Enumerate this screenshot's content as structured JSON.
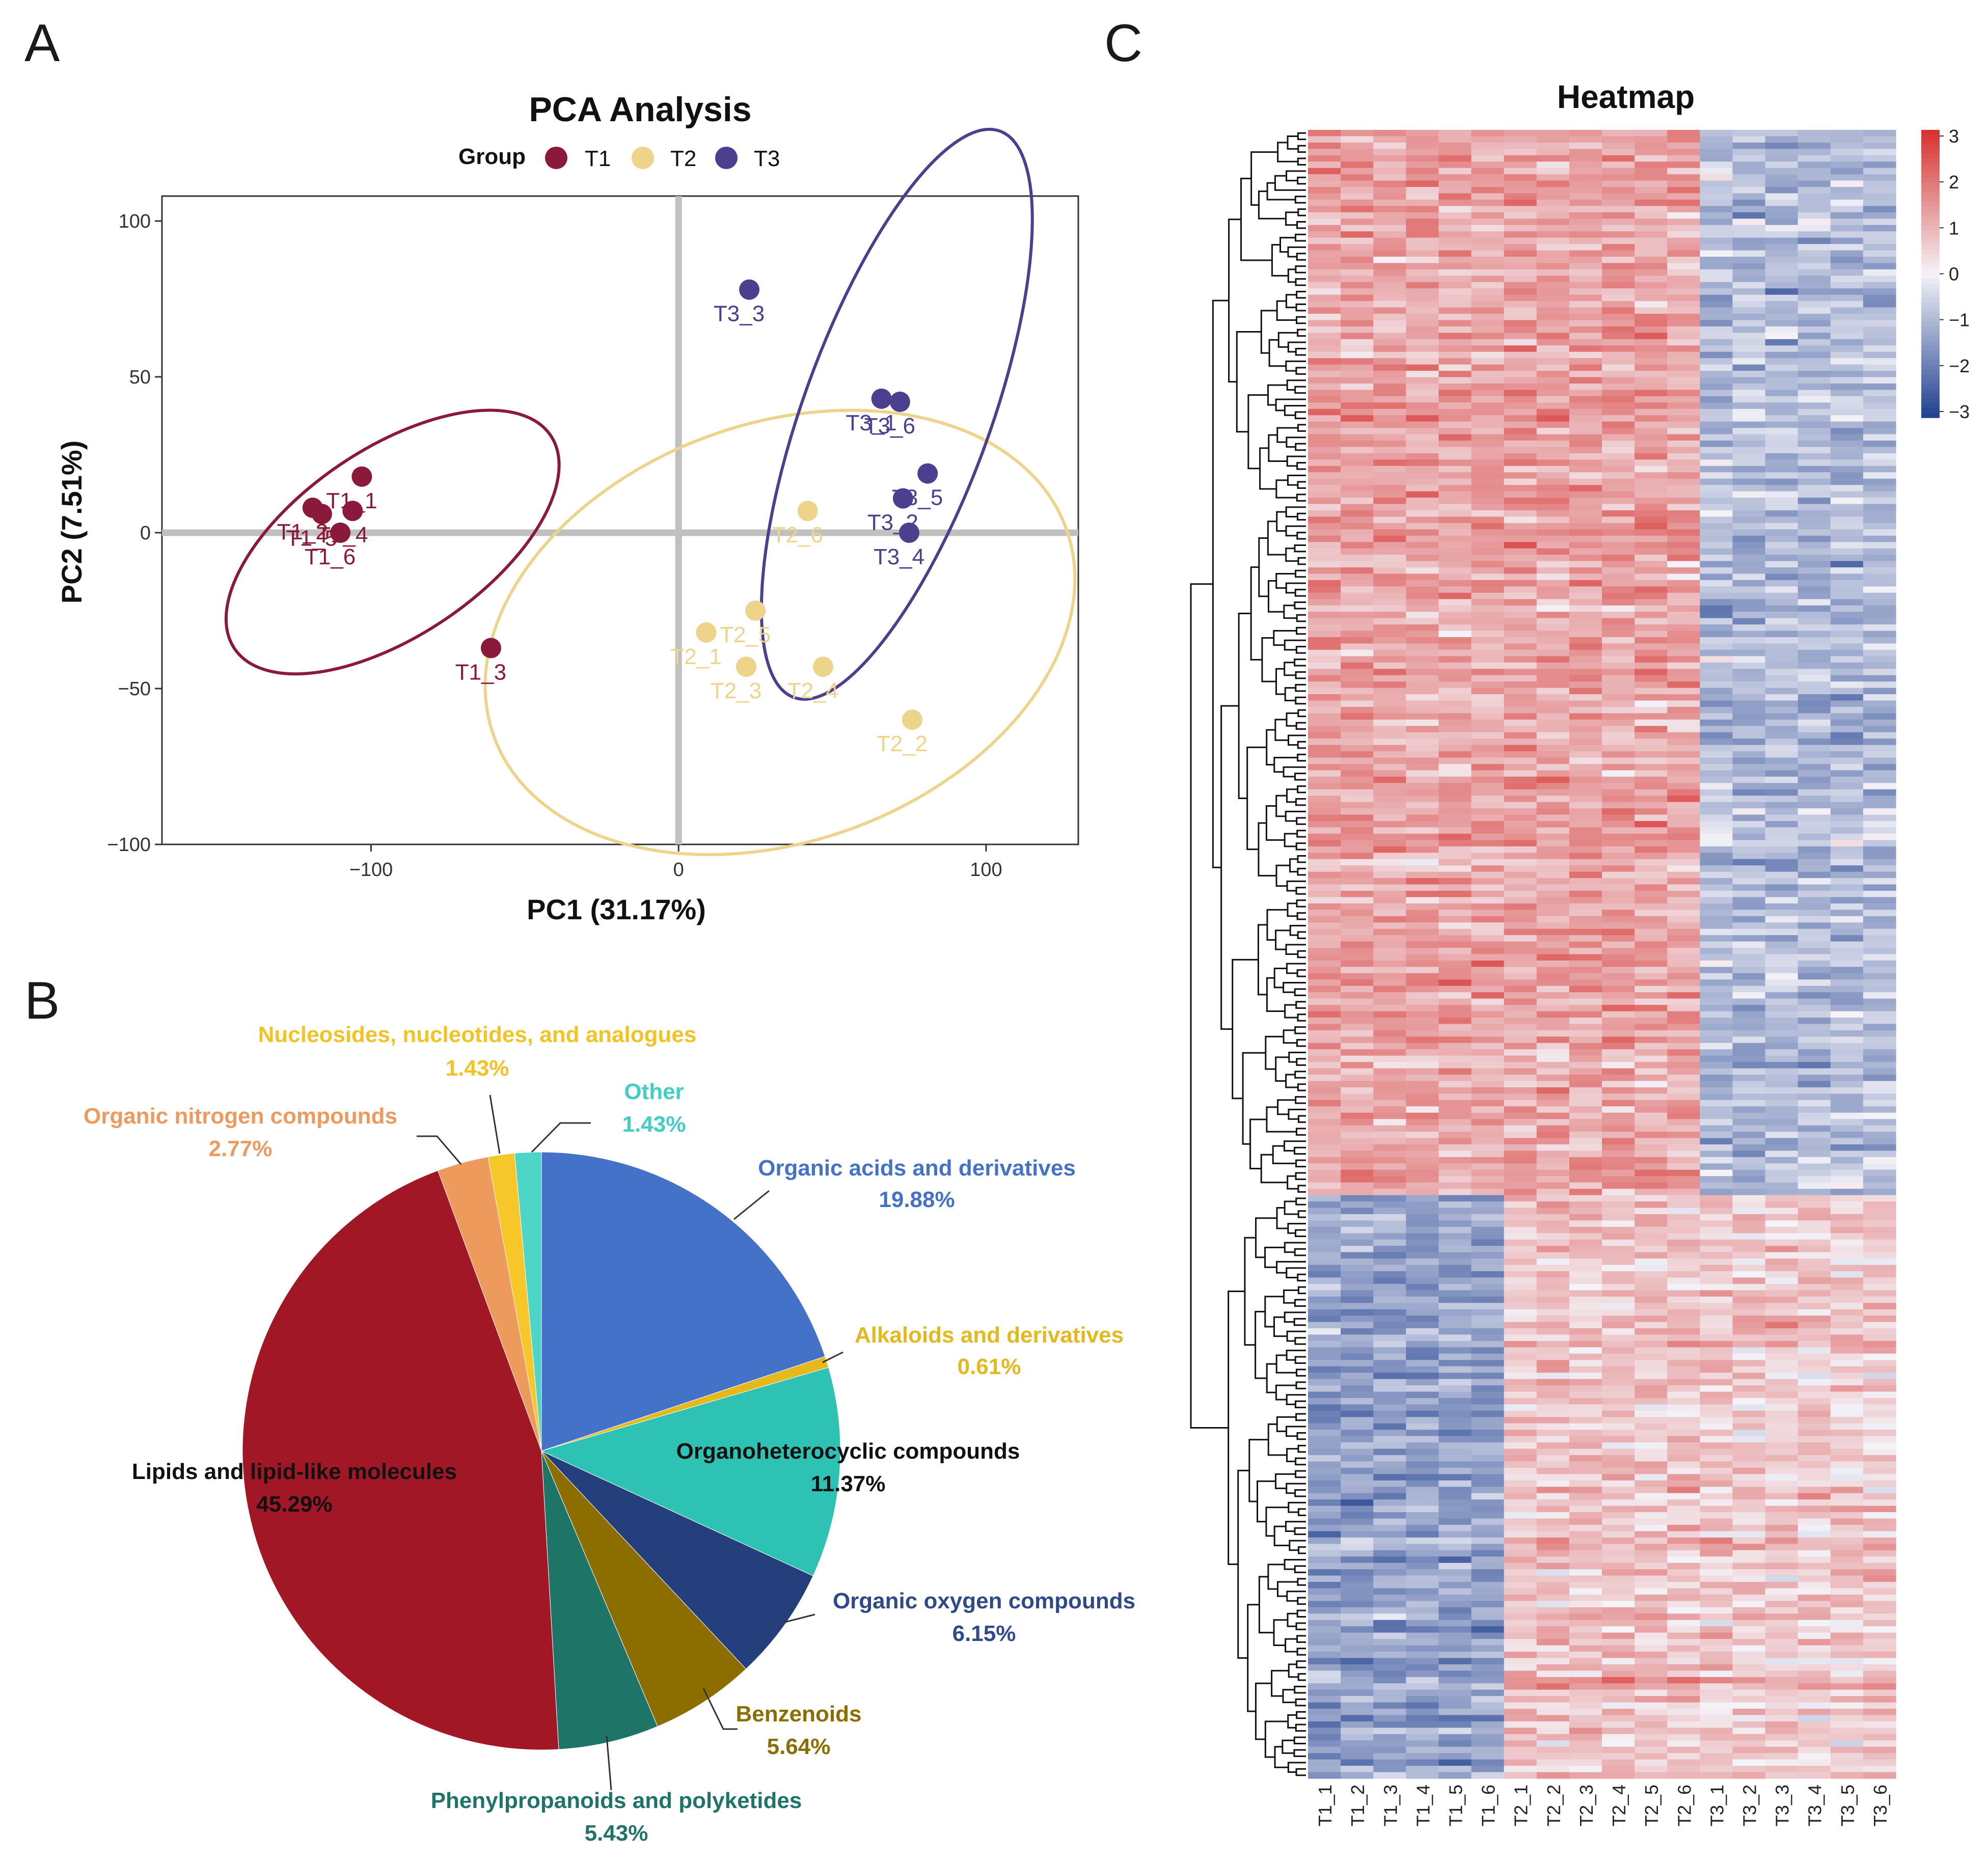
{
  "panels": {
    "a": "A",
    "b": "B",
    "c": "C"
  },
  "colors": {
    "t1": "#8b1a3a",
    "t2": "#eed38a",
    "t3": "#4b3f8f",
    "grid": "#c0c0c0"
  },
  "chart_data": [
    {
      "type": "scatter",
      "title": "PCA Analysis",
      "xlabel": "PC1 (31.17%)",
      "ylabel": "PC2 (7.51%)",
      "xlim": [
        -168,
        130
      ],
      "ylim": [
        -100,
        108
      ],
      "xticks": [
        -100,
        0,
        100
      ],
      "yticks": [
        100,
        50,
        0,
        -50,
        -100
      ],
      "xtick_labels": [
        "−100",
        "0",
        "100"
      ],
      "ytick_labels": [
        "100",
        "50",
        "0",
        "−50",
        "−100"
      ],
      "legend": {
        "title": "Group",
        "position": "top"
      },
      "series": [
        {
          "name": "T1",
          "color": "#8b1a3a",
          "points": [
            {
              "label": "T1_1",
              "x": -103,
              "y": 18
            },
            {
              "label": "T1_2",
              "x": -119,
              "y": 8
            },
            {
              "label": "T1_3",
              "x": -61,
              "y": -37
            },
            {
              "label": "T1_4",
              "x": -106,
              "y": 7
            },
            {
              "label": "T1_5",
              "x": -116,
              "y": 6
            },
            {
              "label": "T1_6",
              "x": -110,
              "y": 0
            }
          ],
          "ellipse": {
            "cx": -93,
            "cy": -3,
            "rx": 62,
            "ry": 30,
            "angle_deg": -34
          }
        },
        {
          "name": "T2",
          "color": "#eed38a",
          "points": [
            {
              "label": "T2_1",
              "x": 9,
              "y": -32
            },
            {
              "label": "T2_2",
              "x": 76,
              "y": -60
            },
            {
              "label": "T2_3",
              "x": 22,
              "y": -43
            },
            {
              "label": "T2_4",
              "x": 47,
              "y": -43
            },
            {
              "label": "T2_5",
              "x": 25,
              "y": -25
            },
            {
              "label": "T2_6",
              "x": 42,
              "y": 7
            }
          ],
          "ellipse": {
            "cx": 33,
            "cy": -32,
            "rx": 99,
            "ry": 67,
            "angle_deg": -20
          }
        },
        {
          "name": "T3",
          "color": "#4b3f8f",
          "points": [
            {
              "label": "T3_1",
              "x": 66,
              "y": 43
            },
            {
              "label": "T3_2",
              "x": 73,
              "y": 11
            },
            {
              "label": "T3_3",
              "x": 23,
              "y": 78
            },
            {
              "label": "T3_4",
              "x": 75,
              "y": 0
            },
            {
              "label": "T3_5",
              "x": 81,
              "y": 19
            },
            {
              "label": "T3_6",
              "x": 72,
              "y": 42
            }
          ],
          "ellipse": {
            "cx": 71,
            "cy": 38,
            "rx": 98,
            "ry": 30,
            "angle_deg": -70
          }
        }
      ]
    },
    {
      "type": "pie",
      "start_angle_deg": 0,
      "slices": [
        {
          "name": "Organic acids and derivatives",
          "value": 19.88,
          "percent": "19.88%",
          "color": "#4472c8",
          "label_color": "#4472c8"
        },
        {
          "name": "Alkaloids and derivatives",
          "value": 0.61,
          "percent": "0.61%",
          "color": "#e5b81b",
          "label_color": "#e5b81b"
        },
        {
          "name": "Organoheterocyclic compounds",
          "value": 11.37,
          "percent": "11.37%",
          "color": "#2ec2b4",
          "label_color": "#111111"
        },
        {
          "name": "Organic oxygen compounds",
          "value": 6.15,
          "percent": "6.15%",
          "color": "#243f7c",
          "label_color": "#2e4a8a"
        },
        {
          "name": "Benzenoids",
          "value": 5.64,
          "percent": "5.64%",
          "color": "#8c6d00",
          "label_color": "#8c6d00"
        },
        {
          "name": "Phenylpropanoids and polyketides",
          "value": 5.43,
          "percent": "5.43%",
          "color": "#1f7468",
          "label_color": "#1f7468"
        },
        {
          "name": "Lipids and lipid-like molecules",
          "value": 45.29,
          "percent": "45.29%",
          "color": "#a11726",
          "label_color": "#111111"
        },
        {
          "name": "Organic nitrogen compounds",
          "value": 2.77,
          "percent": "2.77%",
          "color": "#ed9a5c",
          "label_color": "#ed9a5c"
        },
        {
          "name": "Nucleosides, nucleotides, and analogues",
          "value": 1.43,
          "percent": "1.43%",
          "color": "#f7c72a",
          "label_color": "#f2c323"
        },
        {
          "name": "Other",
          "value": 1.43,
          "percent": "1.43%",
          "color": "#4dd5c8",
          "label_color": "#3fcfc3"
        }
      ]
    },
    {
      "type": "heatmap",
      "title": "Heatmap",
      "columns": [
        "T1_1",
        "T1_2",
        "T1_3",
        "T1_4",
        "T1_5",
        "T1_6",
        "T2_1",
        "T2_2",
        "T2_3",
        "T2_4",
        "T2_5",
        "T2_6",
        "T3_1",
        "T3_2",
        "T3_3",
        "T3_4",
        "T3_5",
        "T3_6"
      ],
      "row_count": 260,
      "scale": {
        "min": -3,
        "max": 3,
        "ticks": [
          "3",
          "2",
          "1",
          "0",
          "−1",
          "−2",
          "−3"
        ],
        "low_color": "#1f3f8f",
        "mid_color": "#f4f3f8",
        "high_color": "#d7302d"
      },
      "clusters": [
        {
          "rows": 168,
          "group_means": [
            1.2,
            1.2,
            -0.9
          ]
        },
        {
          "rows": 92,
          "group_means": [
            -1.3,
            0.8,
            0.7
          ]
        }
      ]
    }
  ]
}
